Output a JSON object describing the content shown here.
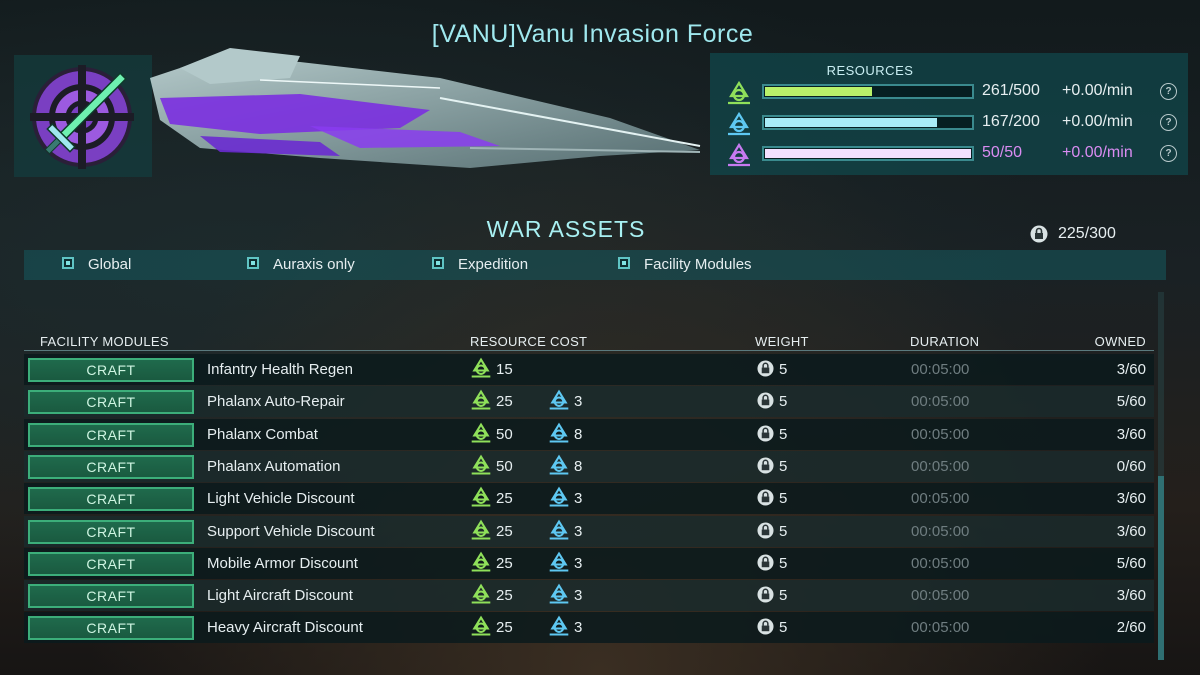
{
  "header": {
    "title": "[VANU]Vanu Invasion Force"
  },
  "emblem": {
    "icon": "vanu-sword-emblem-icon"
  },
  "resources": {
    "title": "RESOURCES",
    "items": [
      {
        "icon": "resource-green-icon",
        "amount": "261/500",
        "rate": "+0.00/min",
        "fill": 0.522,
        "color": "#b9f26a",
        "text_color": "#e6eef0"
      },
      {
        "icon": "resource-blue-icon",
        "amount": "167/200",
        "rate": "+0.00/min",
        "fill": 0.835,
        "color": "#a9ecf8",
        "text_color": "#e6eef0"
      },
      {
        "icon": "resource-purple-icon",
        "amount": "50/50",
        "rate": "+0.00/min",
        "fill": 1.0,
        "color": "#f3e0ff",
        "text_color": "#d98cf2"
      }
    ]
  },
  "war_assets": {
    "title": "WAR ASSETS",
    "capacity": "225/300",
    "filters": [
      "Global",
      "Auraxis only",
      "Expedition",
      "Facility Modules"
    ]
  },
  "table": {
    "headers": {
      "name": "FACILITY MODULES",
      "cost": "RESOURCE COST",
      "weight": "WEIGHT",
      "duration": "DURATION",
      "owned": "OWNED"
    },
    "craft_label": "CRAFT",
    "rows": [
      {
        "name": "Infantry Health Regen",
        "cost_green": "15",
        "cost_blue": "",
        "weight": "5",
        "duration": "00:05:00",
        "owned": "3/60"
      },
      {
        "name": "Phalanx Auto-Repair",
        "cost_green": "25",
        "cost_blue": "3",
        "weight": "5",
        "duration": "00:05:00",
        "owned": "5/60"
      },
      {
        "name": "Phalanx Combat",
        "cost_green": "50",
        "cost_blue": "8",
        "weight": "5",
        "duration": "00:05:00",
        "owned": "3/60"
      },
      {
        "name": "Phalanx Automation",
        "cost_green": "50",
        "cost_blue": "8",
        "weight": "5",
        "duration": "00:05:00",
        "owned": "0/60"
      },
      {
        "name": "Light Vehicle Discount",
        "cost_green": "25",
        "cost_blue": "3",
        "weight": "5",
        "duration": "00:05:00",
        "owned": "3/60"
      },
      {
        "name": "Support Vehicle Discount",
        "cost_green": "25",
        "cost_blue": "3",
        "weight": "5",
        "duration": "00:05:00",
        "owned": "3/60"
      },
      {
        "name": "Mobile Armor Discount",
        "cost_green": "25",
        "cost_blue": "3",
        "weight": "5",
        "duration": "00:05:00",
        "owned": "5/60"
      },
      {
        "name": "Light Aircraft Discount",
        "cost_green": "25",
        "cost_blue": "3",
        "weight": "5",
        "duration": "00:05:00",
        "owned": "3/60"
      },
      {
        "name": "Heavy Aircraft Discount",
        "cost_green": "25",
        "cost_blue": "3",
        "weight": "5",
        "duration": "00:05:00",
        "owned": "2/60"
      }
    ]
  },
  "colors": {
    "accent": "#9fe8ee",
    "craft_button": "#1f6a4c",
    "green_resource": "#8fe05a",
    "blue_resource": "#5ec8f2",
    "purple_resource": "#c77af0"
  }
}
